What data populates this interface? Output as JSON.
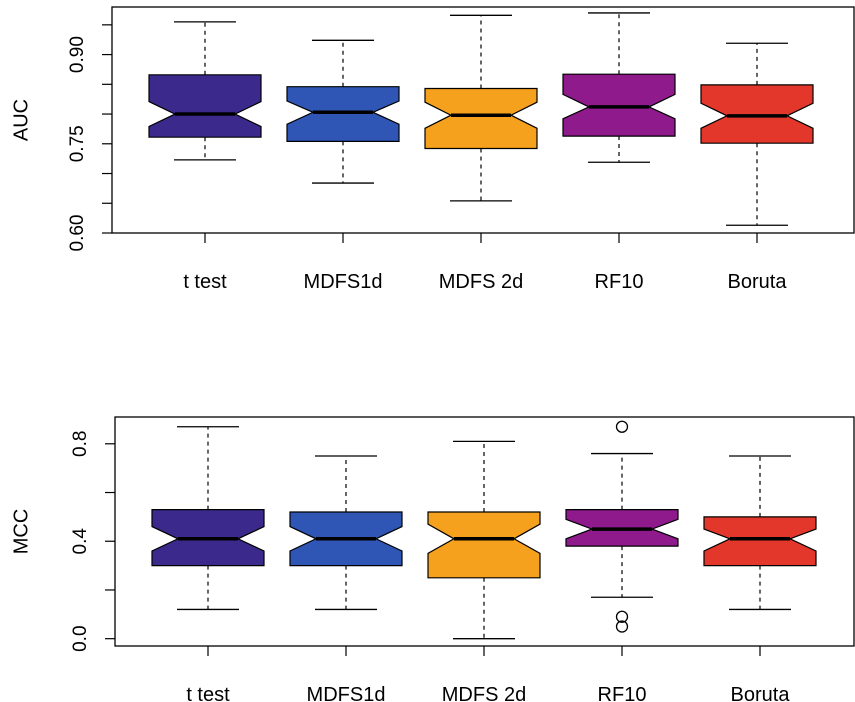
{
  "chart_data": [
    {
      "type": "boxplot",
      "notched": true,
      "ylabel": "AUC",
      "categories": [
        "t test",
        "MDFS1d",
        "MDFS 2d",
        "RF10",
        "Boruta"
      ],
      "ylim": [
        0.6,
        0.98
      ],
      "yticks": [
        0.6,
        0.65,
        0.7,
        0.75,
        0.8,
        0.85,
        0.9,
        0.95
      ],
      "ytick_labels": [
        "0.60",
        "",
        "",
        "0.75",
        "",
        "",
        "0.90",
        ""
      ],
      "series": [
        {
          "min": 0.723,
          "q1": 0.761,
          "median": 0.8,
          "q3": 0.866,
          "max": 0.955,
          "notch_low": 0.779,
          "notch_high": 0.821,
          "outliers": [],
          "color": "#3B2A8C"
        },
        {
          "min": 0.684,
          "q1": 0.754,
          "median": 0.803,
          "q3": 0.846,
          "max": 0.924,
          "notch_low": 0.783,
          "notch_high": 0.822,
          "outliers": [],
          "color": "#2F55B5"
        },
        {
          "min": 0.654,
          "q1": 0.742,
          "median": 0.798,
          "q3": 0.843,
          "max": 0.966,
          "notch_low": 0.776,
          "notch_high": 0.82,
          "outliers": [],
          "color": "#F6A11E"
        },
        {
          "min": 0.719,
          "q1": 0.763,
          "median": 0.812,
          "q3": 0.867,
          "max": 0.97,
          "notch_low": 0.792,
          "notch_high": 0.833,
          "outliers": [],
          "color": "#8E1A8C"
        },
        {
          "min": 0.613,
          "q1": 0.751,
          "median": 0.797,
          "q3": 0.849,
          "max": 0.919,
          "notch_low": 0.776,
          "notch_high": 0.818,
          "outliers": [],
          "color": "#E2372A"
        }
      ]
    },
    {
      "type": "boxplot",
      "notched": true,
      "ylabel": "MCC",
      "categories": [
        "t test",
        "MDFS1d",
        "MDFS 2d",
        "RF10",
        "Boruta"
      ],
      "ylim": [
        -0.03,
        0.91
      ],
      "yticks": [
        0.0,
        0.2,
        0.4,
        0.6,
        0.8
      ],
      "ytick_labels": [
        "0.0",
        "",
        "0.4",
        "",
        "0.8"
      ],
      "series": [
        {
          "min": 0.12,
          "q1": 0.3,
          "median": 0.41,
          "q3": 0.53,
          "max": 0.87,
          "notch_low": 0.36,
          "notch_high": 0.46,
          "outliers": [],
          "color": "#3B2A8C"
        },
        {
          "min": 0.12,
          "q1": 0.3,
          "median": 0.41,
          "q3": 0.52,
          "max": 0.75,
          "notch_low": 0.36,
          "notch_high": 0.46,
          "outliers": [],
          "color": "#2F55B5"
        },
        {
          "min": 0.0,
          "q1": 0.25,
          "median": 0.41,
          "q3": 0.52,
          "max": 0.81,
          "notch_low": 0.35,
          "notch_high": 0.47,
          "outliers": [],
          "color": "#F6A11E"
        },
        {
          "min": 0.17,
          "q1": 0.38,
          "median": 0.45,
          "q3": 0.53,
          "max": 0.76,
          "notch_low": 0.41,
          "notch_high": 0.49,
          "outliers": [
            0.87,
            0.09,
            0.05
          ],
          "color": "#8E1A8C"
        },
        {
          "min": 0.12,
          "q1": 0.3,
          "median": 0.41,
          "q3": 0.5,
          "max": 0.75,
          "notch_low": 0.36,
          "notch_high": 0.45,
          "outliers": [],
          "color": "#E2372A"
        }
      ]
    }
  ]
}
